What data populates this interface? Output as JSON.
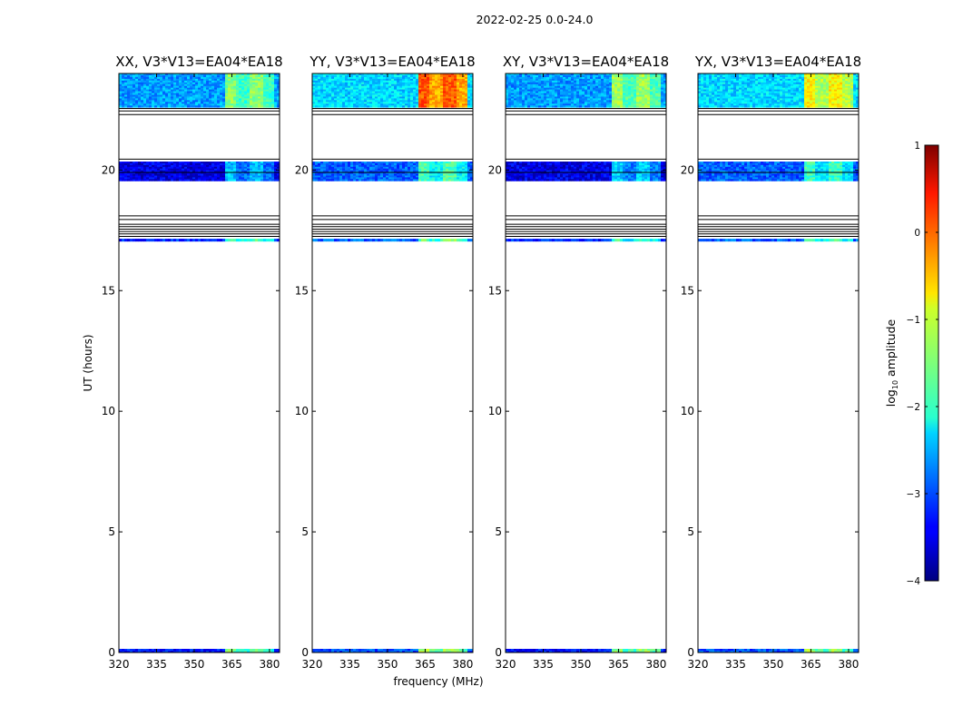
{
  "suptitle": "2022-02-25 0.0-24.0",
  "colorbar": {
    "label_prefix": "log",
    "label_sub": "10",
    "label_suffix": " amplitude",
    "ticks": [
      "1",
      "0",
      "−1",
      "−2",
      "−3",
      "−4"
    ],
    "range": [
      -4,
      1
    ],
    "colormap": "jet"
  },
  "chart_data": [
    {
      "type": "heatmap",
      "title": "XX, V3*V13=EA04*EA18",
      "xlabel": "",
      "ylabel": "UT (hours)",
      "xlim": [
        320,
        384
      ],
      "ylim": [
        0,
        24
      ],
      "x_ticks": [
        "320",
        "335",
        "350",
        "365",
        "380"
      ],
      "y_ticks": [
        "0",
        "5",
        "10",
        "15",
        "20"
      ],
      "data_bands": [
        {
          "from": 0.0,
          "to": 0.15,
          "base": -3.3,
          "rfi": -1.8
        },
        {
          "from": 17.05,
          "to": 17.15,
          "base": -3.2,
          "rfi": -2.0
        },
        {
          "from": 19.55,
          "to": 20.35,
          "base": -3.5,
          "rfi": -2.7
        },
        {
          "from": 22.6,
          "to": 24.0,
          "base": -2.6,
          "rfi": -1.7
        }
      ],
      "flag_lines": [
        17.25,
        17.35,
        17.45,
        17.55,
        17.65,
        17.75,
        17.95,
        18.1,
        19.9,
        20.45,
        22.3,
        22.45,
        22.55
      ]
    },
    {
      "type": "heatmap",
      "title": "YY, V3*V13=EA04*EA18",
      "xlabel": "frequency (MHz)",
      "ylabel": "",
      "xlim": [
        320,
        384
      ],
      "ylim": [
        0,
        24
      ],
      "x_ticks": [
        "320",
        "335",
        "350",
        "365",
        "380"
      ],
      "y_ticks": [
        "0",
        "5",
        "10",
        "15",
        "20"
      ],
      "data_bands": [
        {
          "from": 0.0,
          "to": 0.15,
          "base": -3.0,
          "rfi": -1.5
        },
        {
          "from": 17.05,
          "to": 17.15,
          "base": -2.9,
          "rfi": -1.8
        },
        {
          "from": 19.55,
          "to": 20.35,
          "base": -2.9,
          "rfi": -2.0
        },
        {
          "from": 22.6,
          "to": 24.0,
          "base": -2.3,
          "rfi": -0.3
        }
      ],
      "flag_lines": [
        17.25,
        17.35,
        17.45,
        17.55,
        17.65,
        17.75,
        17.95,
        18.1,
        19.9,
        20.45,
        22.3,
        22.45,
        22.55
      ]
    },
    {
      "type": "heatmap",
      "title": "XY, V3*V13=EA04*EA18",
      "xlabel": "",
      "ylabel": "",
      "xlim": [
        320,
        384
      ],
      "ylim": [
        0,
        24
      ],
      "x_ticks": [
        "320",
        "335",
        "350",
        "365",
        "380"
      ],
      "y_ticks": [
        "0",
        "5",
        "10",
        "15",
        "20"
      ],
      "data_bands": [
        {
          "from": 0.0,
          "to": 0.15,
          "base": -3.3,
          "rfi": -1.6
        },
        {
          "from": 17.05,
          "to": 17.15,
          "base": -3.2,
          "rfi": -2.0
        },
        {
          "from": 19.55,
          "to": 20.35,
          "base": -3.5,
          "rfi": -2.6
        },
        {
          "from": 22.6,
          "to": 24.0,
          "base": -2.6,
          "rfi": -1.6
        }
      ],
      "flag_lines": [
        17.25,
        17.35,
        17.45,
        17.55,
        17.65,
        17.75,
        17.95,
        18.1,
        19.9,
        20.45,
        22.3,
        22.45,
        22.55
      ]
    },
    {
      "type": "heatmap",
      "title": "YX, V3*V13=EA04*EA18",
      "xlabel": "",
      "ylabel": "",
      "xlim": [
        320,
        384
      ],
      "ylim": [
        0,
        24
      ],
      "x_ticks": [
        "320",
        "335",
        "350",
        "365",
        "380"
      ],
      "y_ticks": [
        "0",
        "5",
        "10",
        "15",
        "20"
      ],
      "data_bands": [
        {
          "from": 0.0,
          "to": 0.15,
          "base": -3.0,
          "rfi": -1.6
        },
        {
          "from": 17.05,
          "to": 17.15,
          "base": -2.9,
          "rfi": -1.9
        },
        {
          "from": 19.55,
          "to": 20.35,
          "base": -2.9,
          "rfi": -2.1
        },
        {
          "from": 22.6,
          "to": 24.0,
          "base": -2.3,
          "rfi": -1.1
        }
      ],
      "flag_lines": [
        17.25,
        17.35,
        17.45,
        17.55,
        17.65,
        17.75,
        17.95,
        18.1,
        19.9,
        20.45,
        22.3,
        22.45,
        22.55
      ]
    }
  ]
}
